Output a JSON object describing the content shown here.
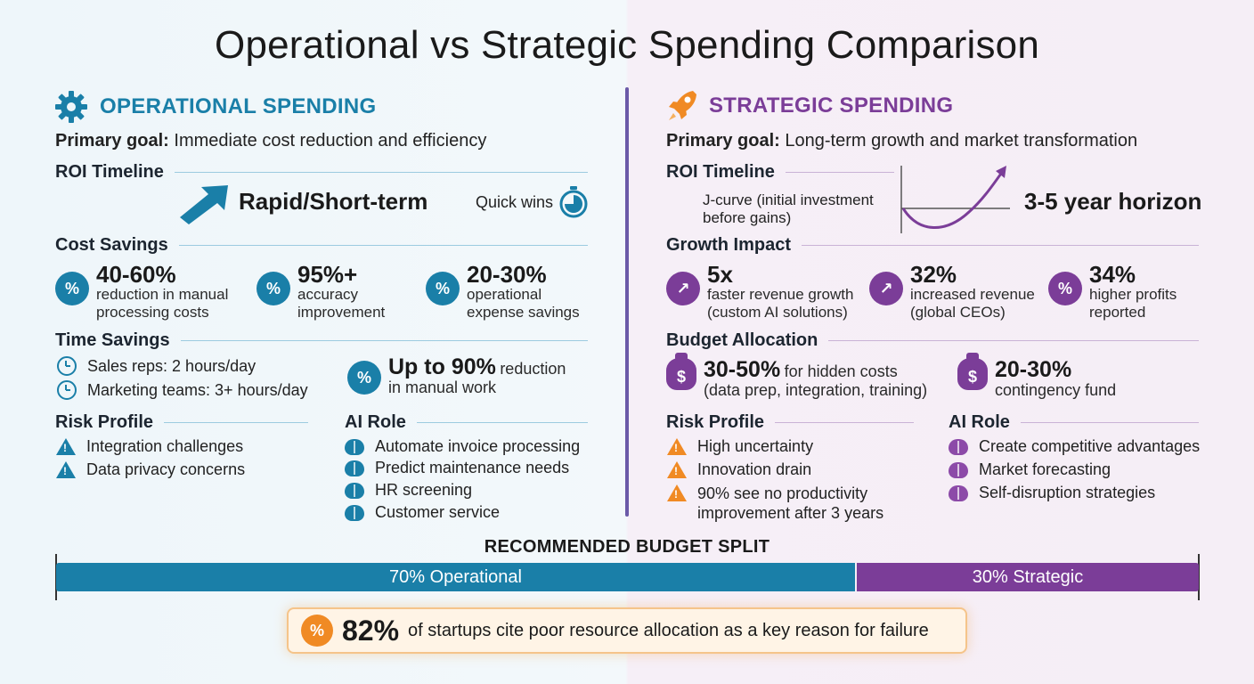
{
  "title": "Operational vs Strategic Spending Comparison",
  "colors": {
    "operational": "#1a7fa8",
    "strategic": "#7b3d98",
    "callout": "#f08a24"
  },
  "operational": {
    "heading": "OPERATIONAL SPENDING",
    "icon": "gear-icon",
    "goal_label": "Primary goal:",
    "goal_text": "Immediate cost reduction and efficiency",
    "roi_label": "ROI Timeline",
    "roi_value": "Rapid/Short-term",
    "roi_note": "Quick wins",
    "cost_label": "Cost Savings",
    "cost_stats": [
      {
        "num": "40-60%",
        "desc1": "reduction in manual",
        "desc2": "processing costs"
      },
      {
        "num": "95%+",
        "desc1": "accuracy",
        "desc2": "improvement"
      },
      {
        "num": "20-30%",
        "desc1": "operational",
        "desc2": "expense savings"
      }
    ],
    "time_label": "Time Savings",
    "time_items": [
      "Sales reps: 2 hours/day",
      "Marketing teams: 3+ hours/day"
    ],
    "time_stat_num": "Up to 90%",
    "time_stat_rest": "reduction",
    "time_stat_line2": "in manual work",
    "risk_label": "Risk Profile",
    "risk_items": [
      "Integration challenges",
      "Data privacy concerns"
    ],
    "ai_label": "AI Role",
    "ai_items": [
      "Automate invoice processing",
      "Predict maintenance needs",
      "HR screening",
      "Customer service"
    ]
  },
  "strategic": {
    "heading": "STRATEGIC SPENDING",
    "icon": "rocket-icon",
    "goal_label": "Primary goal:",
    "goal_text": "Long-term growth and market transformation",
    "roi_label": "ROI Timeline",
    "roi_note1": "J-curve (initial investment",
    "roi_note2": "before gains)",
    "roi_value": "3-5 year horizon",
    "growth_label": "Growth Impact",
    "growth_stats": [
      {
        "num": "5x",
        "desc1": "faster revenue growth",
        "desc2": "(custom AI solutions)"
      },
      {
        "num": "32%",
        "desc1": "increased revenue",
        "desc2": "(global CEOs)"
      },
      {
        "num": "34%",
        "desc1": "higher profits",
        "desc2": "reported"
      }
    ],
    "budget_label": "Budget Allocation",
    "budget_stats": [
      {
        "num": "30-50%",
        "rest": "for hidden costs",
        "line2": "(data prep, integration, training)"
      },
      {
        "num": "20-30%",
        "rest": "",
        "line2": "contingency fund"
      }
    ],
    "risk_label": "Risk Profile",
    "risk_items": [
      "High uncertainty",
      "Innovation drain",
      "90% see no productivity",
      "improvement after 3 years"
    ],
    "ai_label": "AI Role",
    "ai_items": [
      "Create competitive advantages",
      "Market forecasting",
      "Self-disruption strategies"
    ]
  },
  "split": {
    "title": "RECOMMENDED BUDGET SPLIT",
    "operational_label": "70% Operational",
    "strategic_label": "30% Strategic",
    "operational_share": 70,
    "strategic_share": 30
  },
  "callout": {
    "num": "82%",
    "text": "of startups cite poor resource allocation as a key reason for failure"
  }
}
